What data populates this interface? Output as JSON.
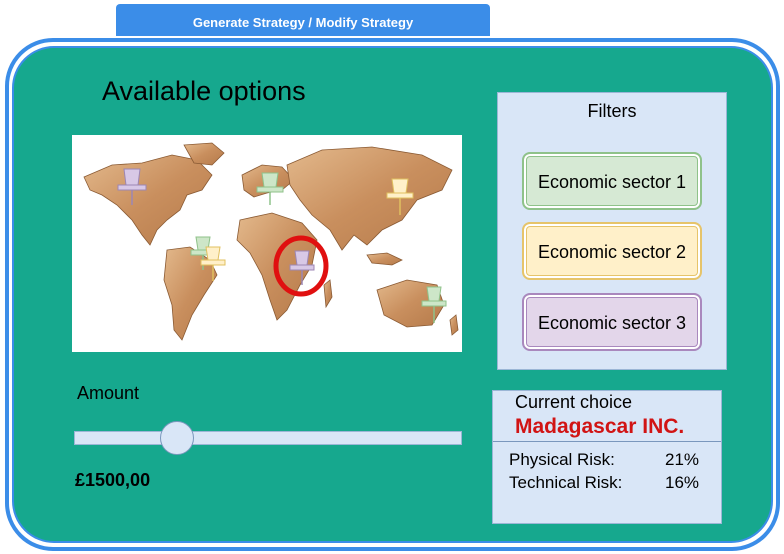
{
  "header": {
    "tab_label": "Generate Strategy / Modify Strategy"
  },
  "main": {
    "title": "Available options",
    "map": {
      "pins": [
        "purple-pin",
        "green-pin",
        "yellow-pin",
        "green-pin",
        "yellow-pin",
        "purple-pin",
        "green-pin"
      ],
      "selected_pin": "purple-pin",
      "selection_color": "#e01010"
    }
  },
  "filters": {
    "title": "Filters",
    "items": [
      {
        "label": "Economic sector 1",
        "color": "#d6e9d4"
      },
      {
        "label": "Economic sector 2",
        "color": "#fff0c9"
      },
      {
        "label": "Economic sector 3",
        "color": "#e3d6ea"
      }
    ]
  },
  "amount": {
    "label": "Amount",
    "value": "£1500,00",
    "slider_fraction": 0.27
  },
  "current_choice": {
    "label": "Current choice",
    "name": "Madagascar INC.",
    "risks": [
      {
        "label": "Physical Risk:",
        "value": "21%"
      },
      {
        "label": "Technical Risk:",
        "value": "16%"
      }
    ]
  },
  "colors": {
    "background": "#16a88e",
    "accent": "#3b8de8",
    "panel": "#d9e6f7",
    "highlight_text": "#d11414"
  }
}
